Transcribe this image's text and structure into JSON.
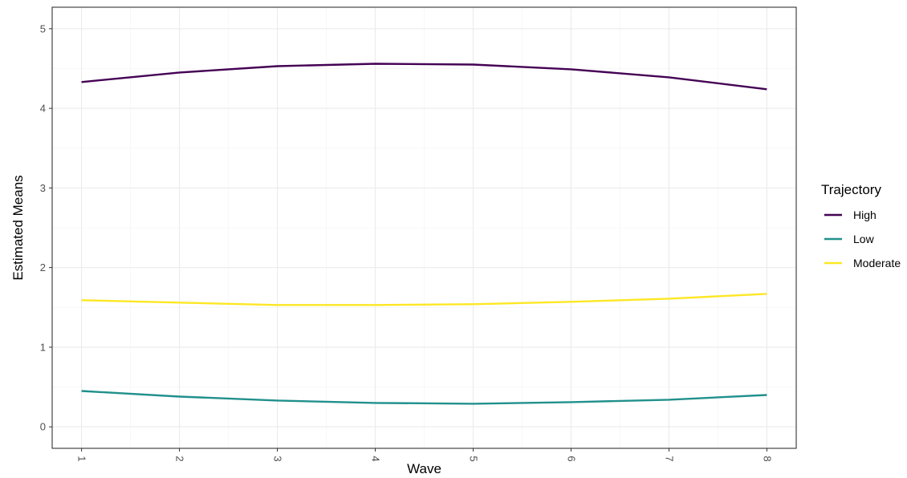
{
  "chart_data": {
    "type": "line",
    "xlabel": "Wave",
    "ylabel": "Estimated Means",
    "x": [
      1,
      2,
      3,
      4,
      5,
      6,
      7,
      8
    ],
    "x_tick_labels": [
      "1",
      "2",
      "3",
      "4",
      "5",
      "6",
      "7",
      "8"
    ],
    "y_tick_labels": [
      "0",
      "1",
      "2",
      "3",
      "4",
      "5"
    ],
    "xlim": [
      0.7,
      8.3
    ],
    "ylim": [
      -0.27,
      5.27
    ],
    "grid": true,
    "legend": {
      "title": "Trajectory",
      "position": "right"
    },
    "series": [
      {
        "name": "High",
        "color": "#440154",
        "values": [
          4.33,
          4.45,
          4.53,
          4.56,
          4.55,
          4.49,
          4.39,
          4.24
        ]
      },
      {
        "name": "Low",
        "color": "#21908C",
        "values": [
          0.45,
          0.38,
          0.33,
          0.3,
          0.29,
          0.31,
          0.34,
          0.4
        ]
      },
      {
        "name": "Moderate",
        "color": "#FDE725",
        "values": [
          1.59,
          1.56,
          1.53,
          1.53,
          1.54,
          1.57,
          1.61,
          1.67
        ]
      }
    ]
  }
}
